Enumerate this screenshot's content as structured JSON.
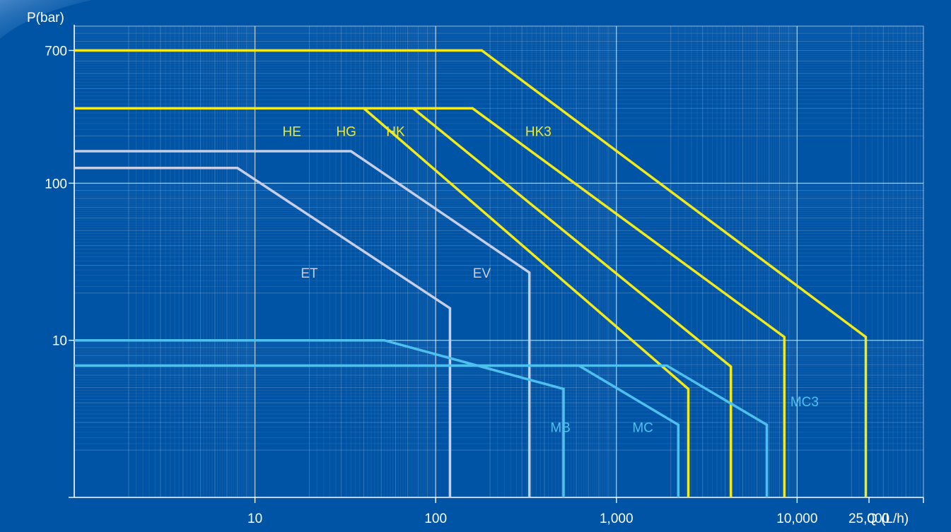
{
  "chart_data": {
    "type": "line",
    "xscale": "log",
    "yscale": "log",
    "xlim": [
      1,
      50000
    ],
    "ylim": [
      1,
      1000
    ],
    "grid": true,
    "xlabel": "Q (L/h)",
    "ylabel": "P(bar)",
    "x_ticks": [
      {
        "value": 10,
        "label": "10"
      },
      {
        "value": 100,
        "label": "100"
      },
      {
        "value": 1000,
        "label": "1,000"
      },
      {
        "value": 10000,
        "label": "10,000"
      },
      {
        "value": 25000,
        "label": "25,000"
      }
    ],
    "y_ticks": [
      {
        "value": 700,
        "label": "700"
      },
      {
        "value": 100,
        "label": "100"
      },
      {
        "value": 10,
        "label": "10"
      }
    ],
    "series": [
      {
        "name": "HK3",
        "color": "#f2ea1c",
        "label_at": [
          370,
          200
        ],
        "points": [
          [
            1,
            700
          ],
          [
            180,
            700
          ],
          [
            24000,
            10.5
          ],
          [
            24000,
            1
          ]
        ]
      },
      {
        "name": "HK",
        "color": "#f2ea1c",
        "label_at": [
          60,
          200
        ],
        "points": [
          [
            1,
            300
          ],
          [
            160,
            300
          ],
          [
            8500,
            10.5
          ],
          [
            8500,
            1
          ]
        ]
      },
      {
        "name": "HG",
        "color": "#f2ea1c",
        "label_at": [
          32,
          200
        ],
        "points": [
          [
            1,
            300
          ],
          [
            75,
            300
          ],
          [
            4300,
            6.8
          ],
          [
            4300,
            1
          ]
        ]
      },
      {
        "name": "HE",
        "color": "#f2ea1c",
        "label_at": [
          16,
          200
        ],
        "points": [
          [
            1,
            300
          ],
          [
            40,
            300
          ],
          [
            2500,
            4.9
          ],
          [
            2500,
            1
          ]
        ]
      },
      {
        "name": "EV",
        "color": "#c6cfe6",
        "label_at": [
          180,
          25
        ],
        "points": [
          [
            1,
            160
          ],
          [
            34,
            160
          ],
          [
            330,
            27
          ],
          [
            330,
            1
          ]
        ]
      },
      {
        "name": "ET",
        "color": "#c6cfe6",
        "label_at": [
          20,
          25
        ],
        "points": [
          [
            1,
            125
          ],
          [
            8,
            125
          ],
          [
            120,
            16
          ],
          [
            120,
            1
          ]
        ]
      },
      {
        "name": "MC3",
        "color": "#4ec0ee",
        "label_at": [
          11000,
          3.8
        ],
        "points": [
          [
            1,
            6.9
          ],
          [
            1900,
            6.9
          ],
          [
            6800,
            2.9
          ],
          [
            6800,
            1
          ]
        ]
      },
      {
        "name": "MC",
        "color": "#4ec0ee",
        "label_at": [
          1400,
          2.6
        ],
        "points": [
          [
            1,
            6.9
          ],
          [
            620,
            6.9
          ],
          [
            2200,
            2.9
          ],
          [
            2200,
            1
          ]
        ]
      },
      {
        "name": "MB",
        "color": "#4ec0ee",
        "label_at": [
          490,
          2.6
        ],
        "points": [
          [
            1,
            10
          ],
          [
            52,
            10
          ],
          [
            510,
            4.9
          ],
          [
            510,
            1
          ]
        ]
      }
    ]
  }
}
